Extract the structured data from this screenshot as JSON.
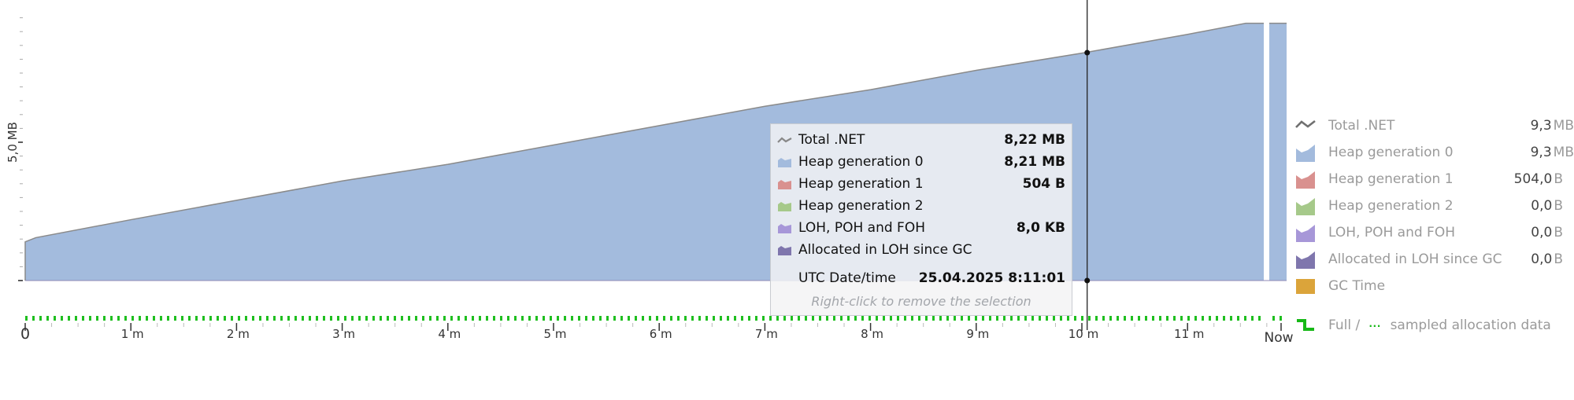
{
  "chart_data": {
    "type": "area",
    "title": "",
    "ylabel": "5,0 MB",
    "xlabel": "",
    "y_unit": "MB",
    "ylim": [
      0,
      10
    ],
    "y_ticks_minor_step": 0.5,
    "y_tick_labels": [
      {
        "value": 5.0,
        "label": "5,0 MB"
      }
    ],
    "x_tick_labels": [
      "0",
      "1 m",
      "2 m",
      "3 m",
      "4 m",
      "5 m",
      "6 m",
      "7 m",
      "8 m",
      "9 m",
      "10 m",
      "11 m",
      "Now"
    ],
    "x_minutes": [
      0,
      1,
      2,
      3,
      4,
      5,
      6,
      7,
      8,
      9,
      10,
      11,
      11.8
    ],
    "series": [
      {
        "name": "Total .NET",
        "kind": "line",
        "color": "#8a8a8a",
        "x": [
          0,
          0.1,
          1,
          2,
          3,
          4,
          5,
          6,
          7,
          8,
          9,
          10,
          11,
          11.55,
          11.8
        ],
        "values": [
          1.4,
          1.55,
          2.2,
          2.9,
          3.6,
          4.2,
          4.9,
          5.6,
          6.3,
          6.9,
          7.6,
          8.22,
          8.9,
          9.3,
          9.3
        ]
      },
      {
        "name": "Heap generation 0",
        "kind": "area",
        "color": "#a3bbdd",
        "x": [
          0,
          0.1,
          1,
          2,
          3,
          4,
          5,
          6,
          7,
          8,
          9,
          10,
          11,
          11.55,
          11.8
        ],
        "values": [
          1.4,
          1.55,
          2.2,
          2.9,
          3.6,
          4.2,
          4.9,
          5.6,
          6.3,
          6.9,
          7.6,
          8.21,
          8.9,
          9.3,
          9.3
        ]
      },
      {
        "name": "Heap generation 1",
        "kind": "area",
        "color": "#d9918f",
        "values_note": "504 B"
      },
      {
        "name": "Heap generation 2",
        "kind": "area",
        "color": "#a6c98a"
      },
      {
        "name": "LOH, POH and FOH",
        "kind": "area",
        "color": "#a797d8"
      },
      {
        "name": "Allocated in LOH since GC",
        "kind": "area",
        "color": "#7f76ad"
      },
      {
        "name": "GC Time",
        "kind": "bar",
        "color": "#dba43a"
      }
    ],
    "crosshair": {
      "x_minutes": 10.05,
      "datetime": "25.04.2025 8:11:01"
    },
    "allocation_data_track": {
      "type": "sampled",
      "color": "#1fbf1f"
    },
    "legend_position": "right"
  },
  "tooltip": {
    "rows": [
      {
        "label": "Total .NET",
        "value": "8,22 MB",
        "icon": "line-icon",
        "color": "#888888"
      },
      {
        "label": "Heap generation 0",
        "value": "8,21 MB",
        "icon": "area-icon",
        "color": "#a3bbdd"
      },
      {
        "label": "Heap generation 1",
        "value": "504 B",
        "icon": "area-icon",
        "color": "#d9918f"
      },
      {
        "label": "Heap generation 2",
        "value": "",
        "icon": "area-icon",
        "color": "#a6c98a"
      },
      {
        "label": "LOH, POH and FOH",
        "value": "8,0 KB",
        "icon": "area-icon",
        "color": "#a797d8"
      },
      {
        "label": "Allocated in LOH since GC",
        "value": "",
        "icon": "area-icon",
        "color": "#7f76ad"
      }
    ],
    "date_label": "UTC Date/time",
    "date_value": "25.04.2025 8:11:01",
    "hint": "Right-click to remove the selection"
  },
  "legend": {
    "items": [
      {
        "label": "Total .NET",
        "num": "9,3",
        "unit": "MB",
        "icon": "line-icon",
        "color": "#707070"
      },
      {
        "label": "Heap generation 0",
        "num": "9,3",
        "unit": "MB",
        "icon": "area-icon",
        "color": "#a3bbdd"
      },
      {
        "label": "Heap generation 1",
        "num": "504,0",
        "unit": "B",
        "icon": "area-icon",
        "color": "#d9918f"
      },
      {
        "label": "Heap generation 2",
        "num": "0,0",
        "unit": "B",
        "icon": "area-icon",
        "color": "#a6c98a"
      },
      {
        "label": "LOH, POH and FOH",
        "num": "0,0",
        "unit": "B",
        "icon": "area-icon",
        "color": "#a797d8"
      },
      {
        "label": "Allocated in LOH since GC",
        "num": "0,0",
        "unit": "B",
        "icon": "area-icon",
        "color": "#7f76ad"
      },
      {
        "label": "GC Time",
        "num": "",
        "unit": "",
        "icon": "square-icon",
        "color": "#dba43a"
      }
    ],
    "allocation": {
      "label_full": "Full /",
      "label_sampled": "sampled allocation data",
      "color": "#16b816"
    }
  }
}
